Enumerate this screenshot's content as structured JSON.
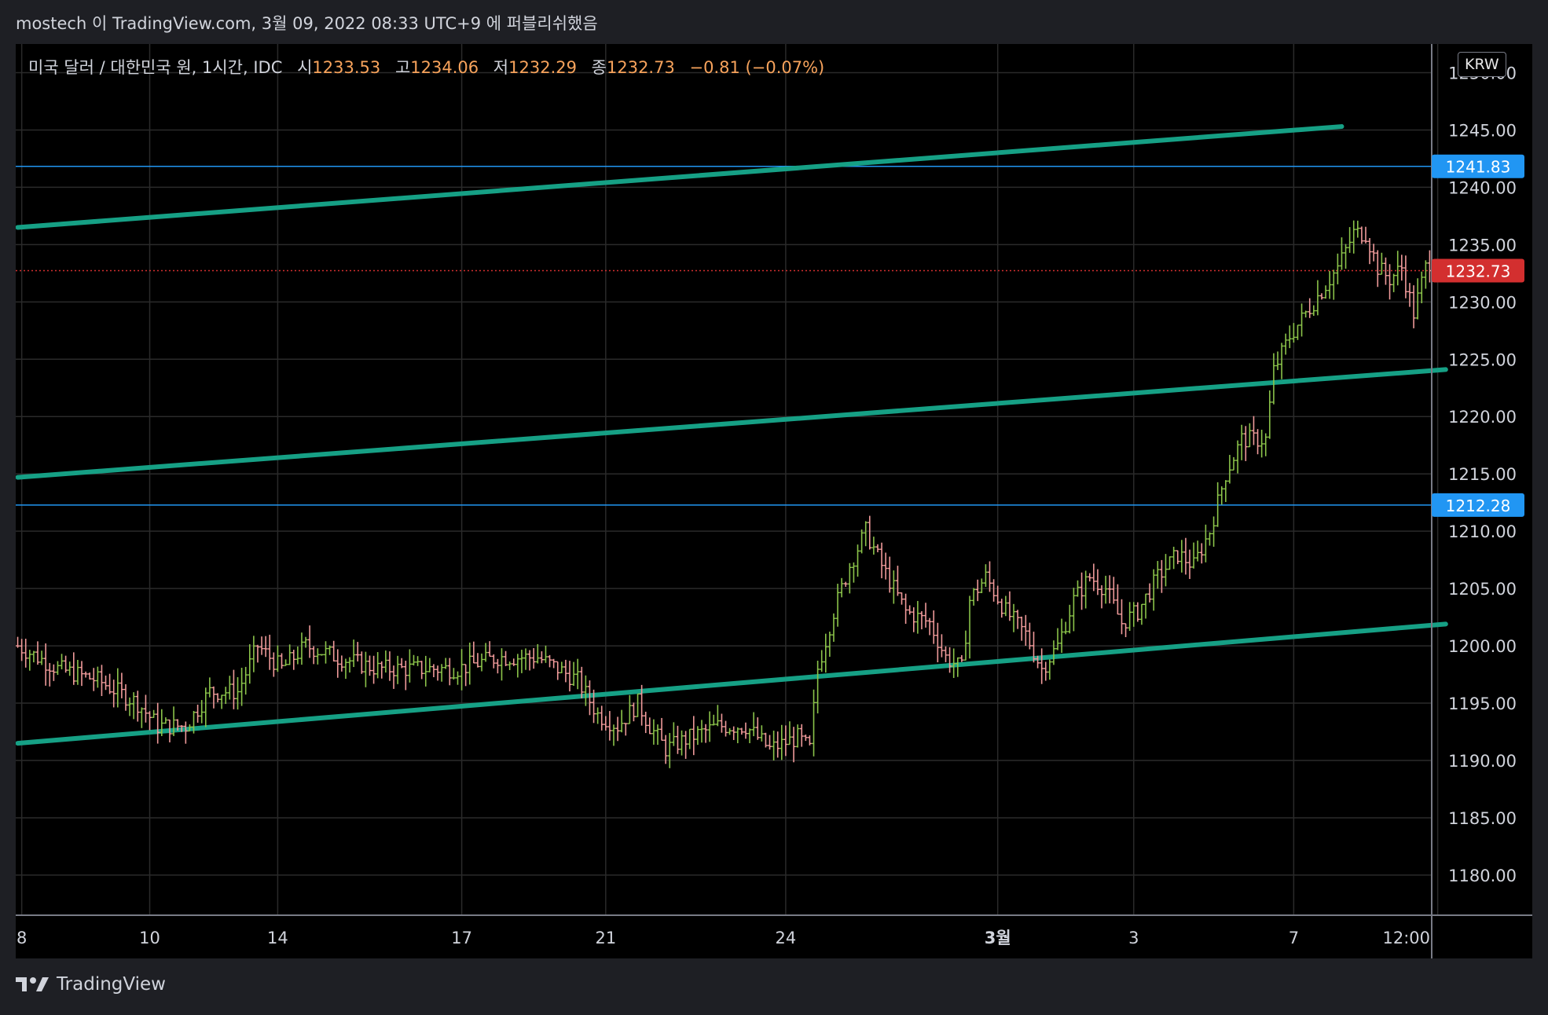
{
  "header": {
    "author": "mostech",
    "published_text": "이 TradingView.com, 3월 09, 2022 08:33 UTC+9 에 퍼블리쉬했음"
  },
  "legend": {
    "symbol": "미국 달러 / 대한민국 원, 1시간, IDC",
    "open_label": "시",
    "open": "1233.53",
    "high_label": "고",
    "high": "1234.06",
    "low_label": "저",
    "low": "1232.29",
    "close_label": "종",
    "close": "1232.73",
    "change": "−0.81 (−0.07%)"
  },
  "currency_badge": "KRW",
  "footer": {
    "brand": "TradingView"
  },
  "colors": {
    "background": "#000000",
    "grid": "#2a2a2a",
    "trendline": "#16a085",
    "hline": "#2196f3",
    "last_price": "#d32f2f",
    "candle_up": "#8bc34a",
    "candle_down": "#ef9a9a",
    "axis_text": "#d1d4dc"
  },
  "chart_data": {
    "type": "ohlc",
    "title": "미국 달러 / 대한민국 원, 1시간, IDC",
    "y_axis": {
      "range": [
        1176.5,
        1252.5
      ],
      "ticks": [
        1180,
        1185,
        1190,
        1195,
        1200,
        1205,
        1210,
        1215,
        1220,
        1225,
        1230,
        1235,
        1240,
        1245,
        1250
      ],
      "tick_labels": [
        "1180.00",
        "1185.00",
        "1190.00",
        "1195.00",
        "1200.00",
        "1205.00",
        "1210.00",
        "1215.00",
        "1220.00",
        "1225.00",
        "1230.00",
        "1235.00",
        "1240.00",
        "1245.00",
        "1250.00"
      ]
    },
    "x_axis": {
      "labels": [
        "8",
        "10",
        "14",
        "17",
        "21",
        "24",
        "3월",
        "3",
        "7",
        "12:00"
      ],
      "label_index": [
        1,
        33,
        65,
        111,
        147,
        192,
        245,
        279,
        319,
        355
      ]
    },
    "price_path": [
      [
        0,
        1200
      ],
      [
        10,
        1198
      ],
      [
        20,
        1197
      ],
      [
        30,
        1195
      ],
      [
        35,
        1193
      ],
      [
        42,
        1193
      ],
      [
        48,
        1196
      ],
      [
        55,
        1196
      ],
      [
        60,
        1200
      ],
      [
        66,
        1198
      ],
      [
        72,
        1200
      ],
      [
        80,
        1199
      ],
      [
        90,
        1198
      ],
      [
        100,
        1198
      ],
      [
        110,
        1198
      ],
      [
        120,
        1199
      ],
      [
        130,
        1199
      ],
      [
        135,
        1198
      ],
      [
        140,
        1197
      ],
      [
        145,
        1194
      ],
      [
        150,
        1193
      ],
      [
        155,
        1195
      ],
      [
        158,
        1193
      ],
      [
        162,
        1191
      ],
      [
        168,
        1192
      ],
      [
        175,
        1193
      ],
      [
        182,
        1193
      ],
      [
        188,
        1191
      ],
      [
        195,
        1192
      ],
      [
        198,
        1191
      ],
      [
        200,
        1198
      ],
      [
        204,
        1203
      ],
      [
        208,
        1207
      ],
      [
        212,
        1210
      ],
      [
        216,
        1207
      ],
      [
        222,
        1203
      ],
      [
        228,
        1202
      ],
      [
        232,
        1199
      ],
      [
        236,
        1198
      ],
      [
        238,
        1204
      ],
      [
        242,
        1206
      ],
      [
        247,
        1203
      ],
      [
        252,
        1201
      ],
      [
        256,
        1198
      ],
      [
        260,
        1200
      ],
      [
        264,
        1204
      ],
      [
        268,
        1206
      ],
      [
        272,
        1205
      ],
      [
        276,
        1202
      ],
      [
        280,
        1203
      ],
      [
        285,
        1206
      ],
      [
        290,
        1208
      ],
      [
        294,
        1207
      ],
      [
        298,
        1210
      ],
      [
        302,
        1215
      ],
      [
        306,
        1218
      ],
      [
        310,
        1218
      ],
      [
        312,
        1218
      ],
      [
        314,
        1224
      ],
      [
        318,
        1227
      ],
      [
        322,
        1229
      ],
      [
        326,
        1231
      ],
      [
        330,
        1233
      ],
      [
        334,
        1236
      ],
      [
        337,
        1236
      ],
      [
        340,
        1233
      ],
      [
        343,
        1232
      ],
      [
        346,
        1233
      ],
      [
        349,
        1229
      ],
      [
        352,
        1233
      ],
      [
        353,
        1232.73
      ]
    ],
    "bar_count": 354,
    "last_price": 1232.73,
    "last_price_label": "1232.73",
    "horizontal_lines": [
      {
        "price": 1241.83,
        "label": "1241.83"
      },
      {
        "price": 1212.28,
        "label": "1212.28"
      }
    ],
    "trend_lines": [
      {
        "x0": 0,
        "y0": 1236.5,
        "x1": 331,
        "y1": 1245.3
      },
      {
        "x0": 0,
        "y0": 1214.7,
        "x1": 357,
        "y1": 1224.1
      },
      {
        "x0": 0,
        "y0": 1191.5,
        "x1": 357,
        "y1": 1201.9
      }
    ]
  }
}
